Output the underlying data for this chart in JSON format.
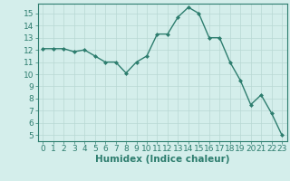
{
  "x": [
    0,
    1,
    2,
    3,
    4,
    5,
    6,
    7,
    8,
    9,
    10,
    11,
    12,
    13,
    14,
    15,
    16,
    17,
    18,
    19,
    20,
    21,
    22,
    23
  ],
  "y": [
    12.1,
    12.1,
    12.1,
    11.85,
    12.0,
    11.5,
    11.0,
    11.0,
    10.1,
    11.0,
    11.5,
    13.3,
    13.3,
    14.7,
    15.5,
    15.0,
    13.0,
    13.0,
    11.0,
    9.5,
    7.5,
    8.3,
    6.8,
    5.0
  ],
  "line_color": "#2d7d6e",
  "marker": "D",
  "marker_size": 2.0,
  "line_width": 1.0,
  "bg_color": "#d4eeeb",
  "grid_color": "#b8d8d4",
  "xlabel": "Humidex (Indice chaleur)",
  "xlabel_fontsize": 7.5,
  "tick_fontsize": 6.5,
  "xlim": [
    -0.5,
    23.5
  ],
  "ylim": [
    4.5,
    15.8
  ],
  "yticks": [
    5,
    6,
    7,
    8,
    9,
    10,
    11,
    12,
    13,
    14,
    15
  ],
  "xticks": [
    0,
    1,
    2,
    3,
    4,
    5,
    6,
    7,
    8,
    9,
    10,
    11,
    12,
    13,
    14,
    15,
    16,
    17,
    18,
    19,
    20,
    21,
    22,
    23
  ],
  "figure_bg": "#d4eeeb",
  "spine_color": "#2d7d6e"
}
